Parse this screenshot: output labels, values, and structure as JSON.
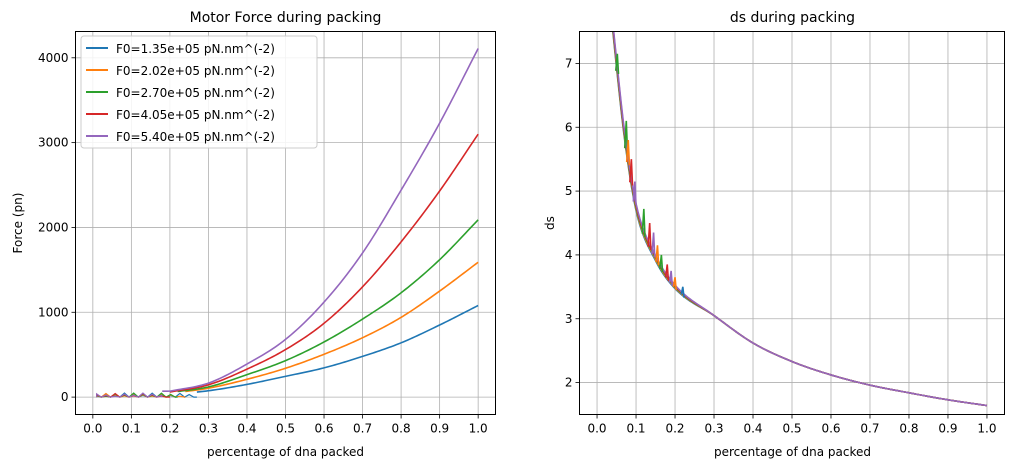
{
  "chart_data": [
    {
      "type": "line",
      "title": "Motor Force during packing",
      "xlabel": "percentage of dna packed",
      "ylabel": "Force (pn)",
      "xlim": [
        -0.045,
        1.045
      ],
      "ylim": [
        -205,
        4310
      ],
      "x_ticks": [
        0.0,
        0.1,
        0.2,
        0.3,
        0.4,
        0.5,
        0.6,
        0.7,
        0.8,
        0.9,
        1.0
      ],
      "x_tick_labels": [
        "0.0",
        "0.1",
        "0.2",
        "0.3",
        "0.4",
        "0.5",
        "0.6",
        "0.7",
        "0.8",
        "0.9",
        "1.0"
      ],
      "y_ticks": [
        0,
        1000,
        2000,
        3000,
        4000
      ],
      "y_tick_labels": [
        "0",
        "1000",
        "2000",
        "3000",
        "4000"
      ],
      "grid": true,
      "legend_position": "top-left",
      "series": [
        {
          "name": "F0=1.35e+05 pN.nm^(-2)",
          "color": "#1f77b4",
          "final_value": 1080,
          "start_x": 0.27
        },
        {
          "name": "F0=2.02e+05 pN.nm^(-2)",
          "color": "#ff7f0e",
          "final_value": 1590,
          "start_x": 0.24
        },
        {
          "name": "F0=2.70e+05 pN.nm^(-2)",
          "color": "#2ca02c",
          "final_value": 2090,
          "start_x": 0.22
        },
        {
          "name": "F0=4.05e+05 pN.nm^(-2)",
          "color": "#d62728",
          "final_value": 3100,
          "start_x": 0.2
        },
        {
          "name": "F0=5.40e+05 pN.nm^(-2)",
          "color": "#9467bd",
          "final_value": 4110,
          "start_x": 0.18
        }
      ],
      "curve_points_x": [
        0.2,
        0.3,
        0.4,
        0.5,
        0.6,
        0.7,
        0.8,
        0.9,
        1.0
      ],
      "curve_values": {
        "F0=1.35e+05 pN.nm^(-2)": [
          30,
          75,
          150,
          245,
          345,
          480,
          640,
          850,
          1080
        ],
        "F0=2.02e+05 pN.nm^(-2)": [
          45,
          105,
          210,
          340,
          505,
          700,
          940,
          1250,
          1590
        ],
        "F0=2.70e+05 pN.nm^(-2)": [
          55,
          120,
          265,
          430,
          650,
          920,
          1230,
          1620,
          2090
        ],
        "F0=4.05e+05 pN.nm^(-2)": [
          60,
          145,
          330,
          560,
          870,
          1300,
          1830,
          2430,
          3100
        ],
        "F0=5.40e+05 pN.nm^(-2)": [
          70,
          165,
          390,
          680,
          1120,
          1700,
          2440,
          3230,
          4110
        ]
      }
    },
    {
      "type": "line",
      "title": "ds during packing",
      "xlabel": "percentage of dna packed",
      "ylabel": "ds",
      "xlim": [
        -0.045,
        1.045
      ],
      "ylim": [
        1.5,
        7.5
      ],
      "x_ticks": [
        0.0,
        0.1,
        0.2,
        0.3,
        0.4,
        0.5,
        0.6,
        0.7,
        0.8,
        0.9,
        1.0
      ],
      "x_tick_labels": [
        "0.0",
        "0.1",
        "0.2",
        "0.3",
        "0.4",
        "0.5",
        "0.6",
        "0.7",
        "0.8",
        "0.9",
        "1.0"
      ],
      "y_ticks": [
        2,
        3,
        4,
        5,
        6,
        7
      ],
      "y_tick_labels": [
        "2",
        "3",
        "4",
        "5",
        "6",
        "7"
      ],
      "grid": true,
      "series": [
        {
          "color": "#1f77b4"
        },
        {
          "color": "#ff7f0e"
        },
        {
          "color": "#2ca02c"
        },
        {
          "color": "#d62728"
        },
        {
          "color": "#9467bd"
        }
      ],
      "curve_points_x": [
        0.04,
        0.05,
        0.07,
        0.1,
        0.15,
        0.2,
        0.3,
        0.4,
        0.5,
        0.6,
        0.7,
        0.8,
        0.9,
        1.0
      ],
      "curve_values": [
        7.6,
        7.0,
        5.9,
        4.75,
        3.95,
        3.5,
        3.05,
        2.62,
        2.33,
        2.12,
        1.96,
        1.84,
        1.73,
        1.64
      ],
      "spikes": [
        {
          "series": 2,
          "x": 0.052,
          "y": 7.15
        },
        {
          "series": 2,
          "x": 0.075,
          "y": 6.1
        },
        {
          "series": 1,
          "x": 0.08,
          "y": 5.8
        },
        {
          "series": 3,
          "x": 0.088,
          "y": 5.5
        },
        {
          "series": 4,
          "x": 0.097,
          "y": 5.15
        },
        {
          "series": 2,
          "x": 0.12,
          "y": 4.72
        },
        {
          "series": 3,
          "x": 0.135,
          "y": 4.5
        },
        {
          "series": 4,
          "x": 0.145,
          "y": 4.35
        },
        {
          "series": 1,
          "x": 0.155,
          "y": 4.15
        },
        {
          "series": 2,
          "x": 0.165,
          "y": 4.0
        },
        {
          "series": 3,
          "x": 0.18,
          "y": 3.85
        },
        {
          "series": 4,
          "x": 0.19,
          "y": 3.75
        },
        {
          "series": 1,
          "x": 0.2,
          "y": 3.65
        },
        {
          "series": 0,
          "x": 0.22,
          "y": 3.5
        }
      ]
    }
  ]
}
